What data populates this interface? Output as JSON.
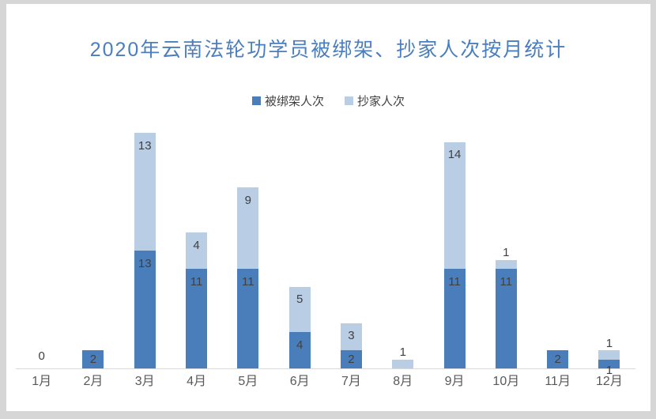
{
  "theme": {
    "page_bg": "#d6d6d6",
    "panel_bg": "#ffffff",
    "title_color": "#4a7ebf",
    "label_color": "#404040",
    "axis_label_color": "#595959",
    "axis_line_color": "#d9d9d9"
  },
  "chart_data": {
    "type": "bar",
    "stacked": true,
    "title": "2020年云南法轮功学员被绑架、抄家人次按月统计",
    "xlabel": "",
    "ylabel": "",
    "ylim": [
      0,
      26
    ],
    "grid": false,
    "legend_position": "top",
    "categories": [
      "1月",
      "2月",
      "3月",
      "4月",
      "5月",
      "6月",
      "7月",
      "8月",
      "9月",
      "10月",
      "11月",
      "12月"
    ],
    "series": [
      {
        "name": "被绑架人次",
        "color": "#4a7ebb",
        "values": [
          0,
          2,
          13,
          11,
          11,
          4,
          2,
          0,
          11,
          11,
          2,
          1
        ],
        "labels": [
          "0",
          "2",
          "13",
          "11",
          "11",
          "4",
          "2",
          null,
          "11",
          "11",
          "2",
          "1"
        ]
      },
      {
        "name": "抄家人次",
        "color": "#b9cde5",
        "values": [
          0,
          0,
          13,
          4,
          9,
          5,
          3,
          1,
          14,
          1,
          0,
          1
        ],
        "labels": [
          null,
          null,
          "13",
          "4",
          "9",
          "5",
          "3",
          "1",
          "14",
          "1",
          null,
          "1"
        ]
      }
    ]
  }
}
